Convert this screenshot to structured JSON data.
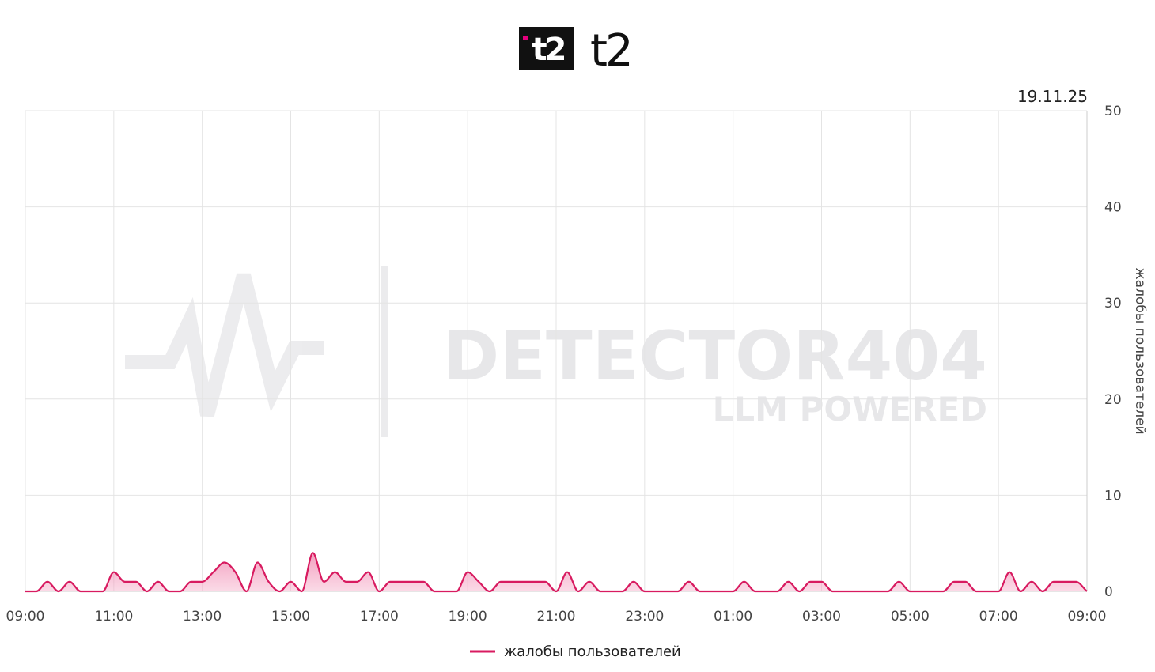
{
  "chart_data": {
    "type": "area",
    "title": "t2",
    "date_label": "19.11.25",
    "y_label": "жалобы пользователей",
    "watermark": [
      "DETECTOR404",
      "LLM POWERED"
    ],
    "x": [
      0,
      0.25,
      0.5,
      0.75,
      1,
      1.25,
      1.5,
      1.75,
      2,
      2.25,
      2.5,
      2.75,
      3,
      3.25,
      3.5,
      3.75,
      4,
      4.25,
      4.5,
      4.75,
      5,
      5.25,
      5.5,
      5.75,
      6,
      6.25,
      6.5,
      6.75,
      7,
      7.25,
      7.5,
      7.75,
      8,
      8.25,
      8.5,
      8.75,
      9,
      9.25,
      9.5,
      9.75,
      10,
      10.25,
      10.5,
      10.75,
      11,
      11.25,
      11.5,
      11.75,
      12,
      12.25,
      12.5,
      12.75,
      13,
      13.25,
      13.5,
      13.75,
      14,
      14.25,
      14.5,
      14.75,
      15,
      15.25,
      15.5,
      15.75,
      16,
      16.25,
      16.5,
      16.75,
      17,
      17.25,
      17.5,
      17.75,
      18,
      18.25,
      18.5,
      18.75,
      19,
      19.25,
      19.5,
      19.75,
      20,
      20.25,
      20.5,
      20.75,
      21,
      21.25,
      21.5,
      21.75,
      22,
      22.25,
      22.5,
      22.75,
      23,
      23.25,
      23.5,
      23.75,
      24
    ],
    "series": [
      {
        "name": "жалобы пользователей",
        "color": "#d81b60",
        "values": [
          0,
          0,
          1,
          0,
          1,
          0,
          0,
          0,
          2,
          1,
          1,
          0,
          1,
          0,
          0,
          1,
          1,
          2,
          3,
          2,
          0,
          3,
          1,
          0,
          1,
          0,
          4,
          1,
          2,
          1,
          1,
          2,
          0,
          1,
          1,
          1,
          1,
          0,
          0,
          0,
          2,
          1,
          0,
          1,
          1,
          1,
          1,
          1,
          0,
          2,
          0,
          1,
          0,
          0,
          0,
          1,
          0,
          0,
          0,
          0,
          1,
          0,
          0,
          0,
          0,
          1,
          0,
          0,
          0,
          1,
          0,
          1,
          1,
          0,
          0,
          0,
          0,
          0,
          0,
          1,
          0,
          0,
          0,
          0,
          1,
          1,
          0,
          0,
          0,
          2,
          0,
          1,
          0,
          1,
          1,
          1,
          0
        ]
      }
    ],
    "xlim": [
      0,
      24
    ],
    "xticks": [
      {
        "value": 0,
        "label": "09:00"
      },
      {
        "value": 2,
        "label": "11:00"
      },
      {
        "value": 4,
        "label": "13:00"
      },
      {
        "value": 6,
        "label": "15:00"
      },
      {
        "value": 8,
        "label": "17:00"
      },
      {
        "value": 10,
        "label": "19:00"
      },
      {
        "value": 12,
        "label": "21:00"
      },
      {
        "value": 14,
        "label": "23:00"
      },
      {
        "value": 16,
        "label": "01:00"
      },
      {
        "value": 18,
        "label": "03:00"
      },
      {
        "value": 20,
        "label": "05:00"
      },
      {
        "value": 22,
        "label": "07:00"
      },
      {
        "value": 24,
        "label": "09:00"
      }
    ],
    "ylim": [
      0,
      50
    ],
    "yticks": [
      0,
      10,
      20,
      30,
      40,
      50
    ],
    "grid": true,
    "legend": "bottom"
  }
}
